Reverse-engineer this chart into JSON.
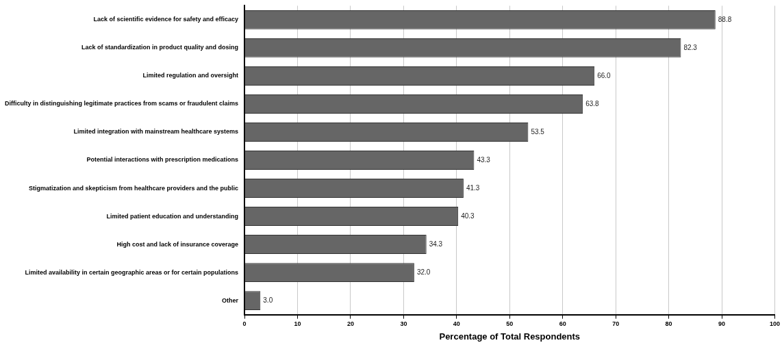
{
  "chart_data": {
    "type": "bar",
    "orientation": "horizontal",
    "xlabel": "Percentage of Total Respondents",
    "categories": [
      "Lack of scientific evidence for safety and efficacy",
      "Lack of standardization in product quality and dosing",
      "Limited regulation and oversight",
      "Difficulty in distinguishing legitimate practices from scams or fraudulent claims",
      "Limited integration with mainstream healthcare systems",
      "Potential interactions with prescription medications",
      "Stigmatization and skepticism from healthcare providers and the public",
      "Limited patient education and understanding",
      "High cost and lack of insurance coverage",
      "Limited availability in certain geographic areas or for certain populations",
      "Other"
    ],
    "values": [
      88.8,
      82.3,
      66.0,
      63.8,
      53.5,
      43.3,
      41.3,
      40.3,
      34.3,
      32.0,
      3.0
    ],
    "value_labels": [
      "88.8",
      "82.3",
      "66.0",
      "63.8",
      "53.5",
      "43.3",
      "41.3",
      "40.3",
      "34.3",
      "32.0",
      "3.0"
    ],
    "color": "#666666",
    "xlim": [
      0,
      100
    ],
    "xticks": [
      0,
      10,
      20,
      30,
      40,
      50,
      60,
      70,
      80,
      90,
      100
    ],
    "grid": "x",
    "legend": false
  }
}
